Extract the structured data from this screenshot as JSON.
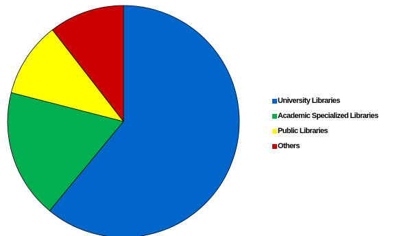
{
  "chart_data": {
    "type": "pie",
    "title": "",
    "slices": [
      {
        "label": "University Libraries",
        "value": 61,
        "color": "#0066cc"
      },
      {
        "label": "Academic Specialized Libraries",
        "value": 18,
        "color": "#00b050"
      },
      {
        "label": "Public Libraries",
        "value": 10.5,
        "color": "#ffff00"
      },
      {
        "label": "Others",
        "value": 10.5,
        "color": "#cc0000"
      }
    ],
    "start_angle_deg": 0,
    "direction": "clockwise",
    "legend_position": "right"
  }
}
